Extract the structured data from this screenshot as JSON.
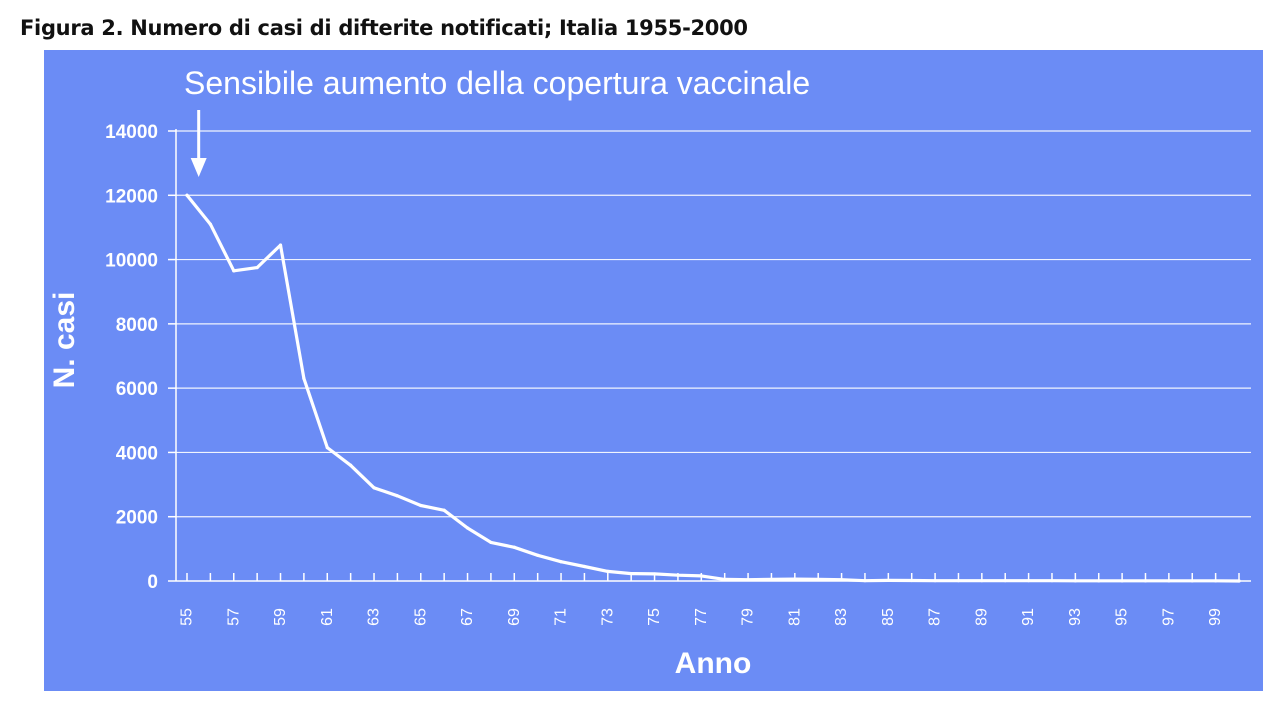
{
  "caption": "Figura 2. Numero di casi di difterite notificati; Italia 1955-2000",
  "colors": {
    "panel_background": "#6b8cf5",
    "foreground": "#ffffff",
    "caption_text": "#111111"
  },
  "chart_data": {
    "type": "line",
    "title": "",
    "annotation": {
      "text": "Sensibile aumento della copertura vaccinale",
      "marker": "arrow-down",
      "at_x": 55.5
    },
    "xlabel": "Anno",
    "ylabel": "N. casi",
    "xlim": [
      55,
      100
    ],
    "ylim": [
      0,
      14000
    ],
    "y_ticks": [
      0,
      2000,
      4000,
      6000,
      8000,
      10000,
      12000,
      14000
    ],
    "x_ticks": [
      55,
      57,
      59,
      61,
      63,
      65,
      67,
      69,
      71,
      73,
      75,
      77,
      79,
      81,
      83,
      85,
      87,
      89,
      91,
      93,
      95,
      97,
      99
    ],
    "x_tick_labels": [
      "55",
      "57",
      "59",
      "61",
      "63",
      "65",
      "67",
      "69",
      "71",
      "73",
      "75",
      "77",
      "79",
      "81",
      "83",
      "85",
      "87",
      "89",
      "91",
      "93",
      "95",
      "97",
      "99"
    ],
    "grid": true,
    "legend": "none",
    "series": [
      {
        "x": [
          55,
          56,
          57,
          58,
          59,
          60,
          61,
          62,
          63,
          64,
          65,
          66,
          67,
          68,
          69,
          70,
          71,
          72,
          73,
          74,
          75,
          76,
          77,
          78,
          79,
          80,
          81,
          82,
          83,
          84,
          85,
          86,
          87,
          88,
          89,
          90,
          91,
          92,
          93,
          94,
          95,
          96,
          97,
          98,
          99,
          100
        ],
        "values": [
          12000,
          11100,
          9650,
          9750,
          10450,
          6300,
          4150,
          3600,
          2900,
          2650,
          2350,
          2200,
          1650,
          1200,
          1050,
          800,
          600,
          450,
          300,
          230,
          220,
          180,
          160,
          50,
          40,
          50,
          60,
          50,
          40,
          10,
          20,
          15,
          10,
          10,
          10,
          10,
          10,
          10,
          5,
          5,
          5,
          5,
          5,
          5,
          5,
          0
        ]
      }
    ]
  }
}
